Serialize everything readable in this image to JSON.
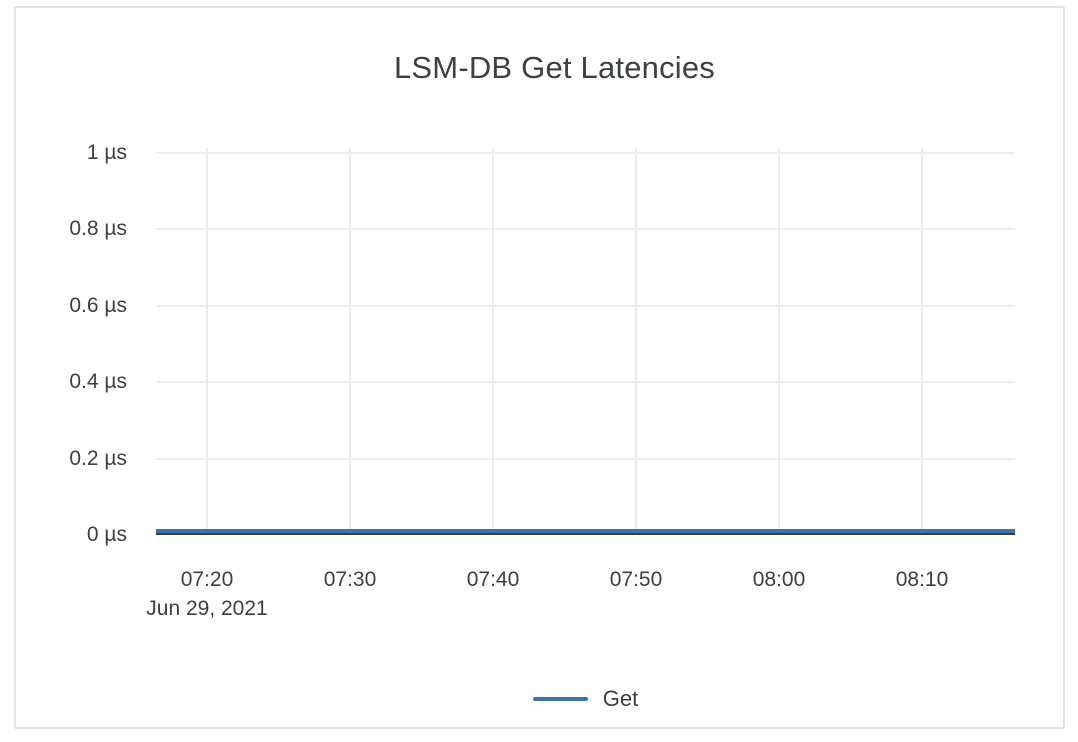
{
  "chart_data": {
    "type": "line",
    "title": "LSM-DB Get Latencies",
    "x_tick_labels": [
      "07:20",
      "07:30",
      "07:40",
      "07:50",
      "08:00",
      "08:10"
    ],
    "x_date_label": "Jun 29, 2021",
    "x_axis_range": [
      "07:16",
      "08:16"
    ],
    "y_tick_labels": [
      "1 µs",
      "0.8 µs",
      "0.6 µs",
      "0.4 µs",
      "0.2 µs",
      "0 µs"
    ],
    "y_tick_values": [
      1,
      0.8,
      0.6,
      0.4,
      0.2,
      0
    ],
    "ylim": [
      0,
      1
    ],
    "y_unit": "µs",
    "grid": true,
    "series": [
      {
        "name": "Get",
        "color": "#3d73ab",
        "x": [
          "07:20",
          "07:30",
          "07:40",
          "07:50",
          "08:00",
          "08:10"
        ],
        "values_us": [
          0,
          0,
          0,
          0,
          0,
          0
        ],
        "shape": "flat line at 0 µs across the entire time range"
      }
    ],
    "legend": {
      "position": "bottom-center",
      "entries": [
        {
          "label": "Get",
          "color": "#3d73ab"
        }
      ]
    }
  },
  "colors": {
    "title_text": "#3c4043",
    "axis_text": "#3c4043",
    "gridline": "#ececec",
    "axis_line": "#37404d",
    "series_get": "#3d73ab",
    "card_border": "#e2e2e2",
    "background": "#ffffff"
  }
}
